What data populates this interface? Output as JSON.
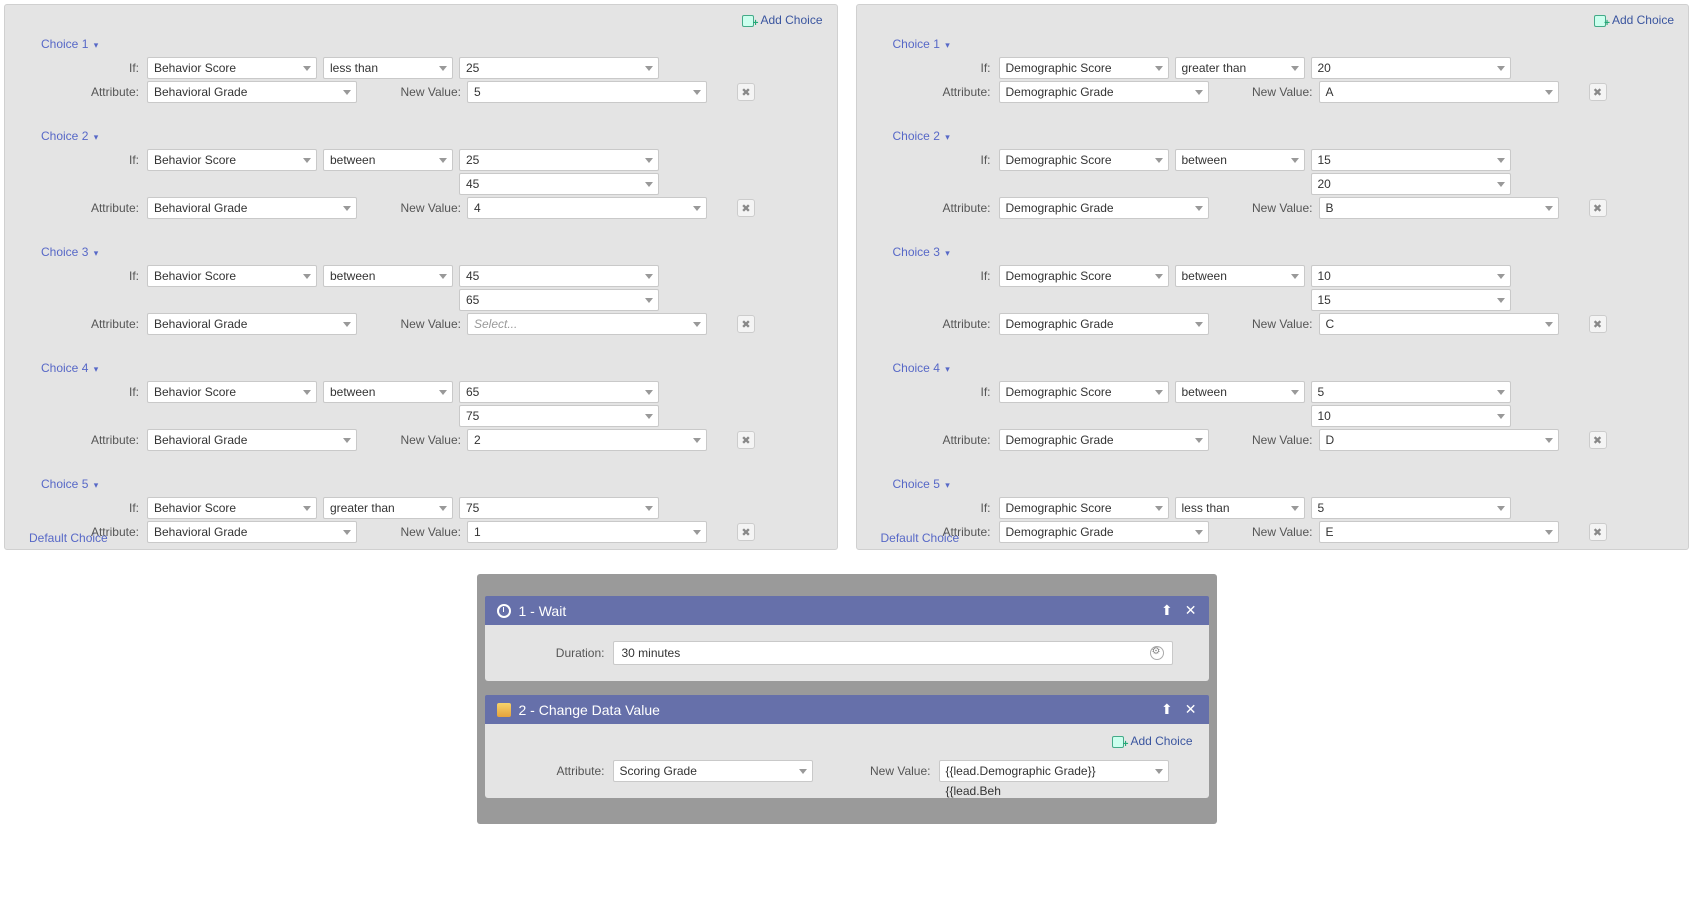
{
  "addChoiceLabel": "Add Choice",
  "defaultChoiceLabel": "Default Choice",
  "labels": {
    "if": "If:",
    "attribute": "Attribute:",
    "newValue": "New Value:",
    "select": "Select...",
    "duration": "Duration:"
  },
  "leftPanel": {
    "choices": [
      {
        "title": "Choice 1",
        "ifAttr": "Behavior Score",
        "op": "less than",
        "val1": "25",
        "val2": null,
        "attr": "Behavioral Grade",
        "newVal": "5"
      },
      {
        "title": "Choice 2",
        "ifAttr": "Behavior Score",
        "op": "between",
        "val1": "25",
        "val2": "45",
        "attr": "Behavioral Grade",
        "newVal": "4"
      },
      {
        "title": "Choice 3",
        "ifAttr": "Behavior Score",
        "op": "between",
        "val1": "45",
        "val2": "65",
        "attr": "Behavioral Grade",
        "newVal": null
      },
      {
        "title": "Choice 4",
        "ifAttr": "Behavior Score",
        "op": "between",
        "val1": "65",
        "val2": "75",
        "attr": "Behavioral Grade",
        "newVal": "2"
      },
      {
        "title": "Choice 5",
        "ifAttr": "Behavior Score",
        "op": "greater than",
        "val1": "75",
        "val2": null,
        "attr": "Behavioral Grade",
        "newVal": "1"
      }
    ]
  },
  "rightPanel": {
    "choices": [
      {
        "title": "Choice 1",
        "ifAttr": "Demographic Score",
        "op": "greater than",
        "val1": "20",
        "val2": null,
        "attr": "Demographic Grade",
        "newVal": "A"
      },
      {
        "title": "Choice 2",
        "ifAttr": "Demographic Score",
        "op": "between",
        "val1": "15",
        "val2": "20",
        "attr": "Demographic Grade",
        "newVal": "B"
      },
      {
        "title": "Choice 3",
        "ifAttr": "Demographic Score",
        "op": "between",
        "val1": "10",
        "val2": "15",
        "attr": "Demographic Grade",
        "newVal": "C"
      },
      {
        "title": "Choice 4",
        "ifAttr": "Demographic Score",
        "op": "between",
        "val1": "5",
        "val2": "10",
        "attr": "Demographic Grade",
        "newVal": "D"
      },
      {
        "title": "Choice 5",
        "ifAttr": "Demographic Score",
        "op": "less than",
        "val1": "5",
        "val2": null,
        "attr": "Demographic Grade",
        "newVal": "E"
      }
    ]
  },
  "flow": {
    "step1": {
      "title": "1 - Wait",
      "duration": "30 minutes"
    },
    "step2": {
      "title": "2 - Change Data Value",
      "attribute": "Scoring Grade",
      "newValue": "{{lead.Demographic Grade}}{{lead.Beh"
    }
  },
  "colors": {
    "panelBg": "#e4e4e4",
    "link": "#5768c7",
    "stepHeader": "#6670aa"
  }
}
